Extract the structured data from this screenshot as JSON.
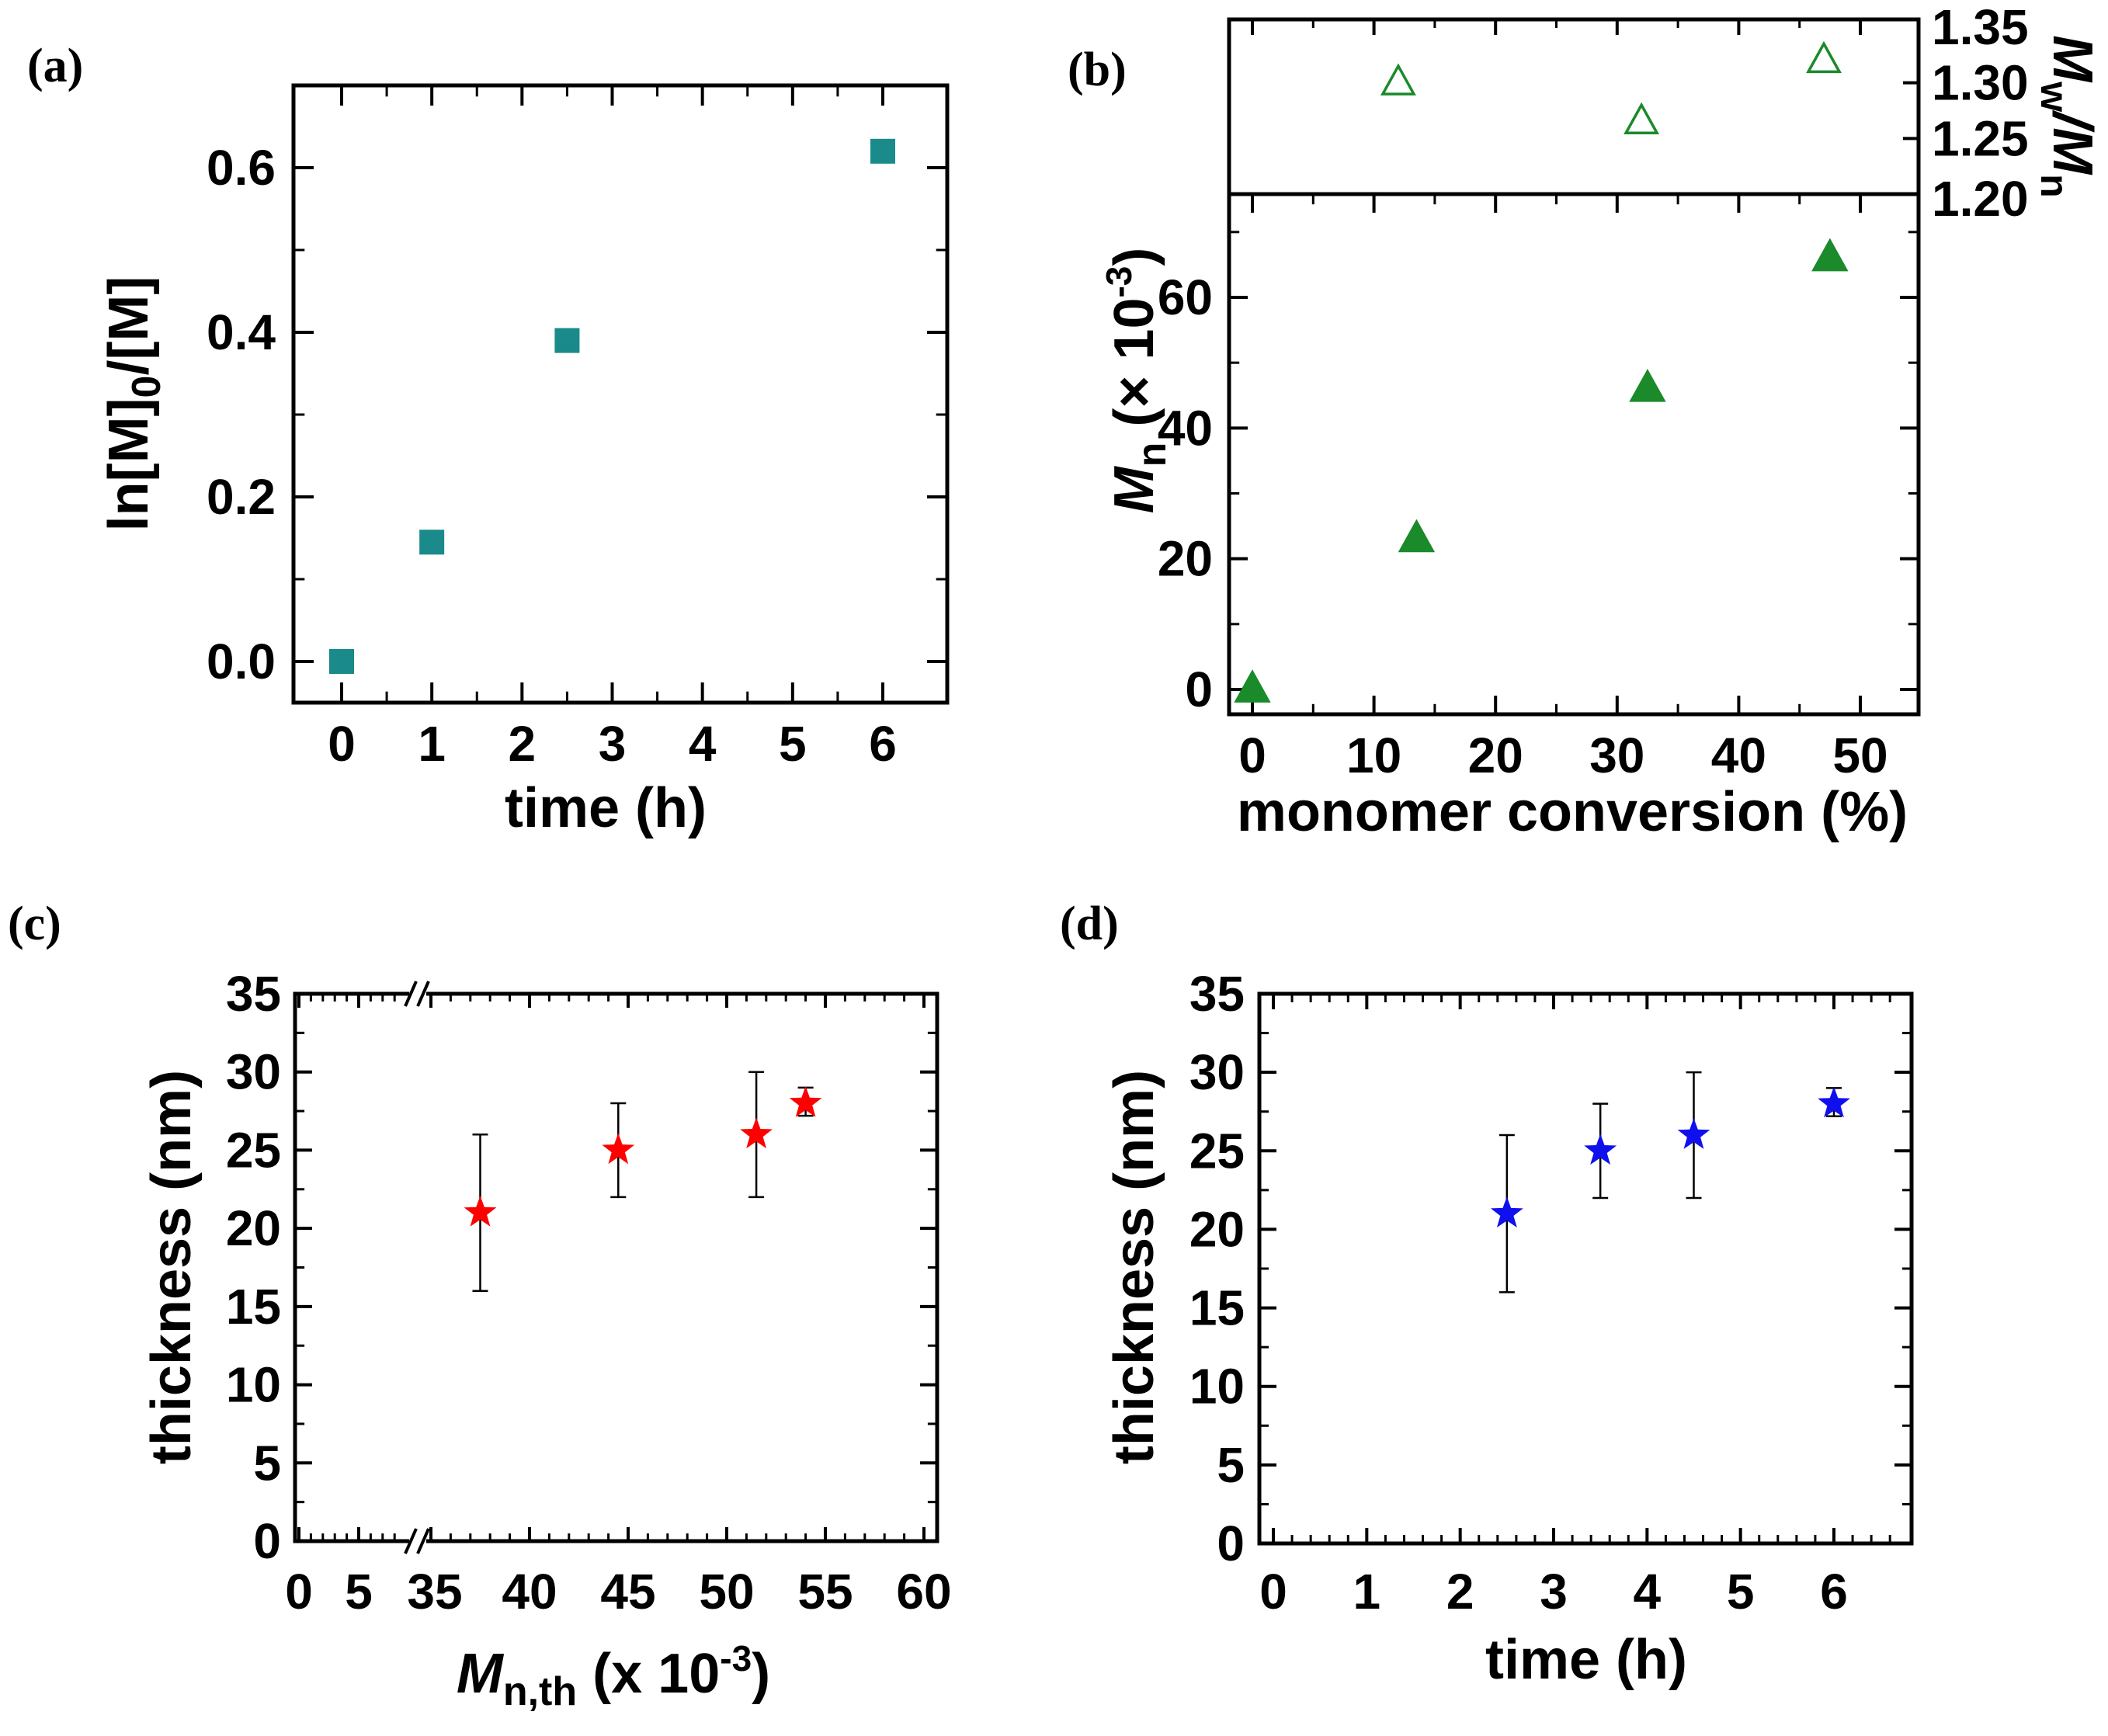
{
  "chart_data": [
    {
      "panel": "(a)",
      "type": "scatter",
      "xlabel": "time (h)",
      "ylabel_parts": [
        "ln[M]",
        "0",
        "/[M]"
      ],
      "xlim": [
        -0.5,
        6.7
      ],
      "ylim": [
        -0.05,
        0.7
      ],
      "xticks": [
        "0",
        "1",
        "2",
        "3",
        "4",
        "5",
        "6"
      ],
      "yticks": [
        "0.0",
        "0.2",
        "0.4",
        "0.6"
      ],
      "series": [
        {
          "marker": "filled-square",
          "color": "#1a8a8a",
          "x": [
            0,
            1,
            2.5,
            6
          ],
          "y": [
            0.0,
            0.145,
            0.39,
            0.62
          ]
        }
      ]
    },
    {
      "panel": "(b)",
      "type": "scatter",
      "xlabel": "monomer conversion (%)",
      "xlim": [
        -2,
        55
      ],
      "xticks": [
        "0",
        "10",
        "20",
        "30",
        "40",
        "50"
      ],
      "upper": {
        "ylabel_parts": [
          "M",
          "w",
          "/M",
          "n"
        ],
        "ylim": [
          1.2,
          1.35
        ],
        "yticks": [
          "1.20",
          "1.25",
          "1.30",
          "1.35"
        ],
        "series": [
          {
            "marker": "open-triangle",
            "color": "#1a8a2a",
            "x": [
              12,
              32,
              47
            ],
            "y": [
              1.3,
              1.265,
              1.32
            ]
          }
        ]
      },
      "lower": {
        "ylabel_parts": [
          "M",
          "n",
          " (× 10",
          "-3",
          ")"
        ],
        "ylim": [
          -4,
          75
        ],
        "yticks": [
          "0",
          "20",
          "40",
          "60"
        ],
        "series": [
          {
            "marker": "filled-triangle",
            "color": "#1a8a2a",
            "x": [
              0,
              13.5,
              32.5,
              47.5
            ],
            "y": [
              0,
              23,
              46,
              66
            ]
          }
        ]
      }
    },
    {
      "panel": "(c)",
      "type": "scatter",
      "xlabel_parts": [
        "M",
        "n,th",
        " (x 10",
        "-3",
        ")"
      ],
      "ylabel": "thickness (nm)",
      "ylim": [
        0,
        35
      ],
      "xticks": [
        "0",
        "5",
        "35",
        "40",
        "45",
        "50",
        "55",
        "60"
      ],
      "yticks": [
        "0",
        "5",
        "10",
        "15",
        "20",
        "25",
        "30",
        "35"
      ],
      "axis_break": "//",
      "series": [
        {
          "marker": "star",
          "color": "#ff0000",
          "x": [
            37.5,
            44.5,
            51.5,
            54
          ],
          "y": [
            21,
            25,
            26,
            28
          ],
          "yerr_low": [
            16,
            22,
            22,
            27.2
          ],
          "yerr_high": [
            26,
            28,
            30,
            29
          ]
        }
      ]
    },
    {
      "panel": "(d)",
      "type": "scatter",
      "xlabel": "time (h)",
      "ylabel": "thickness (nm)",
      "xlim": [
        0,
        6.8
      ],
      "ylim": [
        0,
        35
      ],
      "xticks": [
        "0",
        "1",
        "2",
        "3",
        "4",
        "5",
        "6"
      ],
      "yticks": [
        "0",
        "5",
        "10",
        "15",
        "20",
        "25",
        "30",
        "35"
      ],
      "series": [
        {
          "marker": "star",
          "color": "#1010ee",
          "x": [
            2.5,
            3.5,
            4.5,
            6
          ],
          "y": [
            21,
            25,
            26,
            28
          ],
          "yerr_low": [
            16,
            22,
            22,
            27.2
          ],
          "yerr_high": [
            26,
            28,
            30,
            29
          ]
        }
      ]
    }
  ]
}
